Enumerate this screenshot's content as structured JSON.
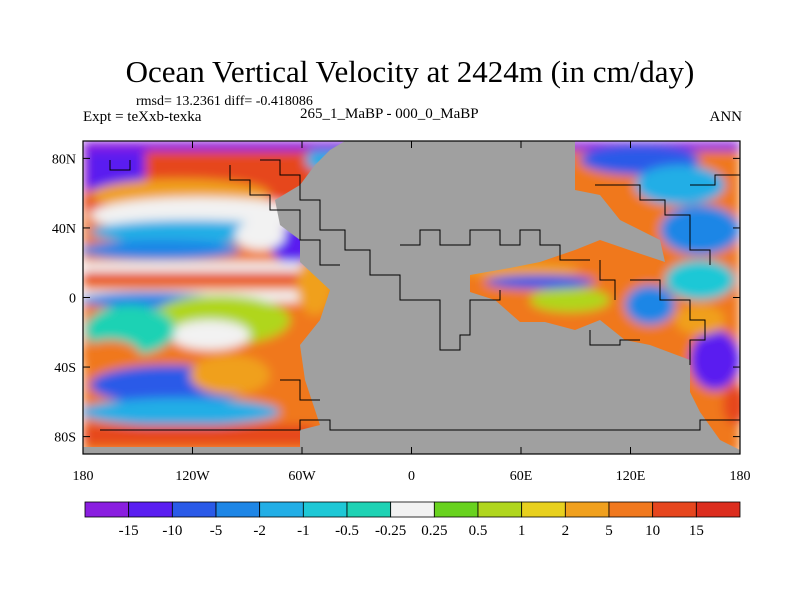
{
  "title": "Ocean Vertical Velocity at 2424m (in cm/day)",
  "stats": "rmsd= 13.2361 diff= -0.418086",
  "experiment": "Expt = teXxb-texka",
  "subtitle": "265_1_MaBP - 000_0_MaBP",
  "season": "ANN",
  "map": {
    "land_color": "#a0a0a0",
    "lon_range": [
      -180,
      180
    ],
    "lat_range": [
      -90,
      90
    ],
    "lon_ticks": [
      {
        "value": -180,
        "label": "180"
      },
      {
        "value": -120,
        "label": "120W"
      },
      {
        "value": -60,
        "label": "60W"
      },
      {
        "value": 0,
        "label": "0"
      },
      {
        "value": 60,
        "label": "60E"
      },
      {
        "value": 120,
        "label": "120E"
      },
      {
        "value": 180,
        "label": "180"
      }
    ],
    "lat_ticks": [
      {
        "value": 80,
        "label": "80N"
      },
      {
        "value": 40,
        "label": "40N"
      },
      {
        "value": 0,
        "label": "0"
      },
      {
        "value": -40,
        "label": "40S"
      },
      {
        "value": -80,
        "label": "80S"
      }
    ]
  },
  "colorbar": {
    "boundary_labels": [
      "-15",
      "-10",
      "-5",
      "-2",
      "-1",
      "-0.5",
      "-0.25",
      "0.25",
      "0.5",
      "1",
      "2",
      "5",
      "10",
      "15"
    ],
    "colors": [
      "#8a1ee0",
      "#5a1ef0",
      "#2a5ae8",
      "#1e86e6",
      "#22aee6",
      "#1ec8d6",
      "#1ed2b4",
      "#f2f2f2",
      "#68d21e",
      "#b0d61e",
      "#e8d01e",
      "#f0a01e",
      "#f0781e",
      "#e6461e",
      "#dc2d1e"
    ]
  }
}
